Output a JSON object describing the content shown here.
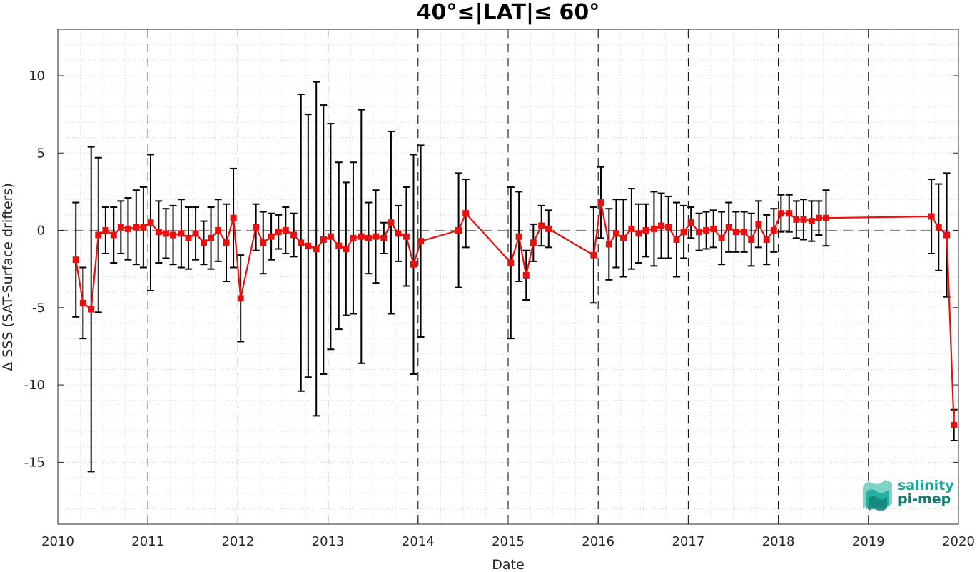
{
  "chart_data": {
    "type": "line",
    "title": "40°≤|LAT|≤ 60°",
    "xlabel": "Date",
    "ylabel": "Δ SSS (SAT-Surface drifters)",
    "xlim": [
      2010,
      2020
    ],
    "ylim": [
      -19,
      13
    ],
    "x_ticks": [
      2010,
      2011,
      2012,
      2013,
      2014,
      2015,
      2016,
      2017,
      2018,
      2019,
      2020
    ],
    "x_tick_labels": [
      "2010",
      "2011",
      "2012",
      "2013",
      "2014",
      "2015",
      "2016",
      "2017",
      "2018",
      "2019",
      "2020"
    ],
    "y_ticks": [
      -15,
      -10,
      -5,
      0,
      5,
      10
    ],
    "y_tick_labels": [
      "-15",
      "-10",
      "-5",
      "0",
      "5",
      "10"
    ],
    "grid": "minor dotted",
    "year_boundaries_dashed": [
      2011,
      2012,
      2013,
      2014,
      2015,
      2016,
      2017,
      2018,
      2019
    ],
    "zero_reference_line": 0,
    "colors": {
      "series": "#e8110f",
      "error_bars": "#000000",
      "grid": "#d0d0d0",
      "logo": "#1aa89c"
    },
    "series": [
      {
        "x": [
          2010.2,
          2010.28,
          2010.37,
          2010.45,
          2010.53,
          2010.62,
          2010.7,
          2010.78,
          2010.87,
          2010.95,
          2011.03,
          2011.12,
          2011.2,
          2011.28,
          2011.37,
          2011.45,
          2011.53,
          2011.62,
          2011.7,
          2011.78,
          2011.87,
          2011.95,
          2012.03,
          2012.2,
          2012.28,
          2012.37,
          2012.45,
          2012.53,
          2012.62,
          2012.7,
          2012.78,
          2012.87,
          2012.95,
          2013.03,
          2013.12,
          2013.2,
          2013.28,
          2013.37,
          2013.45,
          2013.53,
          2013.62,
          2013.7,
          2013.78,
          2013.87,
          2013.95,
          2014.03,
          2014.45,
          2014.53,
          2015.03,
          2015.12,
          2015.2,
          2015.28,
          2015.37,
          2015.45,
          2015.95,
          2016.03,
          2016.12,
          2016.2,
          2016.28,
          2016.37,
          2016.45,
          2016.53,
          2016.62,
          2016.7,
          2016.78,
          2016.87,
          2016.95,
          2017.03,
          2017.12,
          2017.2,
          2017.28,
          2017.37,
          2017.45,
          2017.53,
          2017.62,
          2017.7,
          2017.78,
          2017.87,
          2017.95,
          2018.03,
          2018.12,
          2018.2,
          2018.28,
          2018.37,
          2018.45,
          2018.53,
          2019.7,
          2019.78,
          2019.87,
          2019.95
        ],
        "y": [
          -1.9,
          -4.7,
          -5.1,
          -0.3,
          0.0,
          -0.3,
          0.2,
          0.1,
          0.2,
          0.2,
          0.5,
          -0.1,
          -0.2,
          -0.3,
          -0.2,
          -0.5,
          -0.2,
          -0.8,
          -0.5,
          0.0,
          -0.8,
          0.8,
          -4.4,
          0.2,
          -0.8,
          -0.4,
          -0.1,
          0.0,
          -0.3,
          -0.8,
          -1.0,
          -1.2,
          -0.6,
          -0.4,
          -1.0,
          -1.2,
          -0.5,
          -0.4,
          -0.5,
          -0.4,
          -0.5,
          0.5,
          -0.2,
          -0.4,
          -2.2,
          -0.7,
          0.0,
          1.1,
          -2.1,
          -0.4,
          -2.9,
          -0.8,
          0.3,
          0.1,
          -1.6,
          1.8,
          -0.9,
          -0.2,
          -0.5,
          0.1,
          -0.2,
          0.0,
          0.1,
          0.3,
          0.2,
          -0.6,
          -0.1,
          0.5,
          -0.1,
          0.0,
          0.1,
          -0.5,
          0.2,
          -0.1,
          -0.1,
          -0.6,
          0.4,
          -0.6,
          0.0,
          1.1,
          1.1,
          0.7,
          0.7,
          0.6,
          0.8,
          0.8,
          0.9,
          0.2,
          -0.3,
          -12.6
        ],
        "err": [
          3.7,
          2.3,
          10.5,
          5.0,
          1.5,
          1.8,
          1.7,
          2.0,
          2.4,
          2.6,
          4.4,
          2.0,
          1.6,
          1.9,
          2.2,
          2.0,
          1.7,
          1.4,
          2.0,
          2.0,
          2.5,
          3.2,
          2.8,
          1.5,
          2.0,
          1.5,
          1.1,
          1.5,
          1.4,
          9.6,
          8.5,
          10.8,
          8.7,
          7.3,
          5.4,
          4.3,
          4.9,
          8.2,
          2.3,
          3.0,
          1.0,
          5.9,
          1.8,
          3.2,
          7.1,
          6.2,
          3.7,
          2.2,
          4.9,
          2.9,
          1.6,
          1.2,
          1.3,
          1.2,
          3.1,
          2.3,
          2.3,
          2.2,
          2.5,
          2.6,
          1.9,
          1.7,
          2.4,
          2.1,
          2.0,
          2.4,
          1.7,
          1.0,
          1.2,
          1.2,
          1.2,
          1.7,
          1.6,
          1.3,
          1.3,
          1.7,
          1.5,
          1.6,
          1.4,
          1.2,
          1.2,
          1.2,
          1.3,
          1.3,
          1.1,
          1.8,
          2.4,
          2.8,
          4.0,
          1.0
        ]
      }
    ]
  },
  "logo": {
    "line1": "salinity",
    "line2": "pi-mep"
  }
}
